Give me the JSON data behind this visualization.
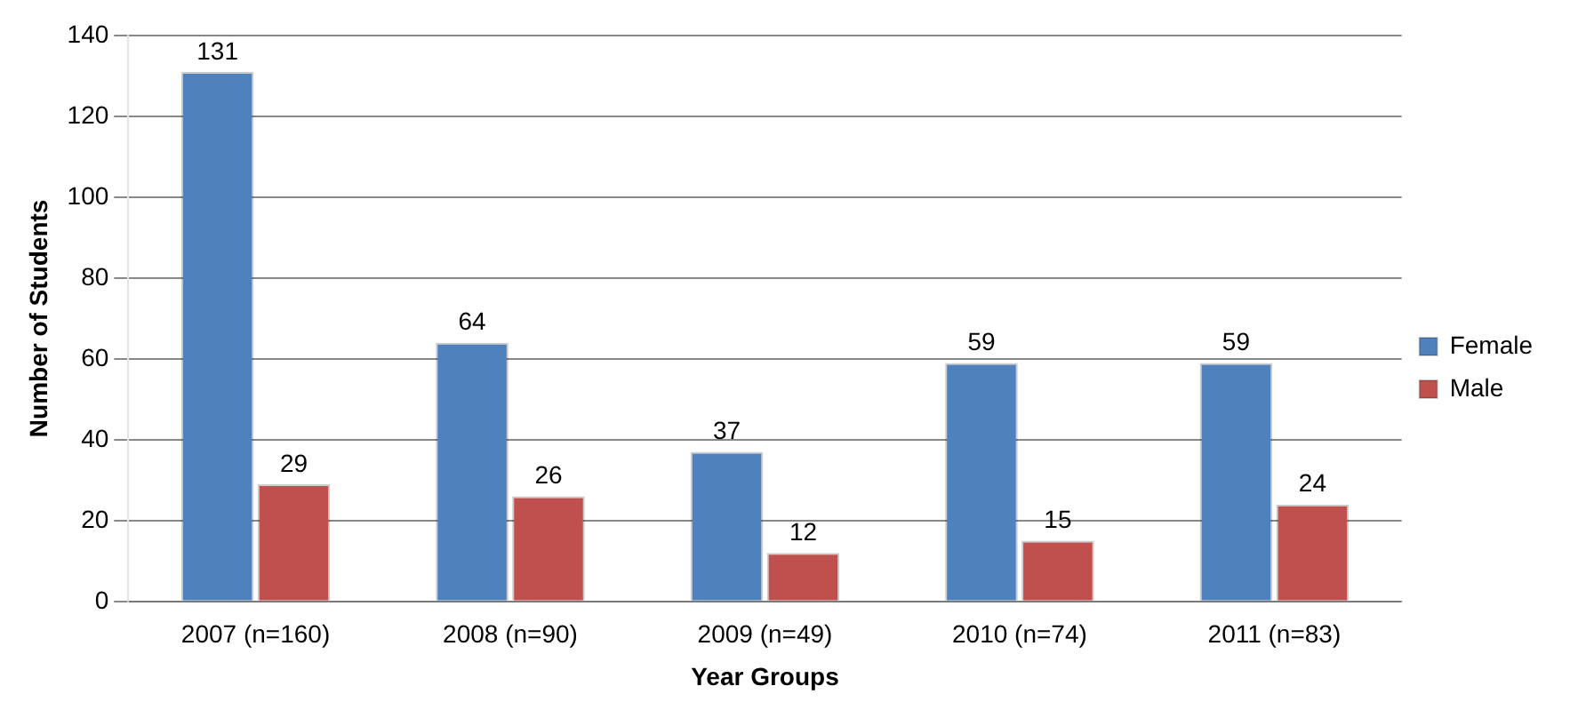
{
  "chart_data": {
    "type": "bar",
    "xlabel": "Year Groups",
    "ylabel": "Number of Students",
    "categories": [
      "2007 (n=160)",
      "2008 (n=90)",
      "2009 (n=49)",
      "2010 (n=74)",
      "2011 (n=83)"
    ],
    "series": [
      {
        "name": "Female",
        "color": "#4f81bd",
        "values": [
          131,
          64,
          37,
          59,
          59
        ]
      },
      {
        "name": "Male",
        "color": "#c0504d",
        "values": [
          29,
          26,
          12,
          15,
          24
        ]
      }
    ],
    "ylim": [
      0,
      140
    ],
    "yticks": [
      0,
      20,
      40,
      60,
      80,
      100,
      120,
      140
    ],
    "grid": "y",
    "legend": "right",
    "data_labels": true
  }
}
